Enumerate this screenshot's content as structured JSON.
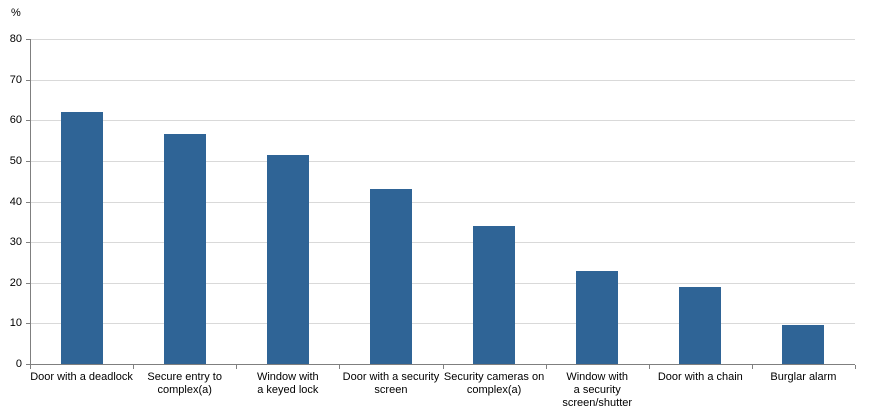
{
  "chart_data": {
    "type": "bar",
    "title": "",
    "xlabel": "",
    "ylabel": "%",
    "ylim": [
      0,
      80
    ],
    "yticks": [
      0,
      10,
      20,
      30,
      40,
      50,
      60,
      70,
      80
    ],
    "grid": "horizontal",
    "legend": "none",
    "categories": [
      "Door with a deadlock",
      "Secure entry to\ncomplex(a)",
      "Window with\na keyed lock",
      "Door with a security\nscreen",
      "Security cameras on\ncomplex(a)",
      "Window with\na security\nscreen/shutter",
      "Door with a chain",
      "Burglar alarm"
    ],
    "values": [
      62,
      56.5,
      51.5,
      43,
      34,
      23,
      19,
      9.5
    ],
    "colors": {
      "bar": "#2f6496",
      "gridline": "#d9d9d9",
      "axis": "#7f7f7f",
      "text": "#000000",
      "background": "#ffffff"
    }
  }
}
